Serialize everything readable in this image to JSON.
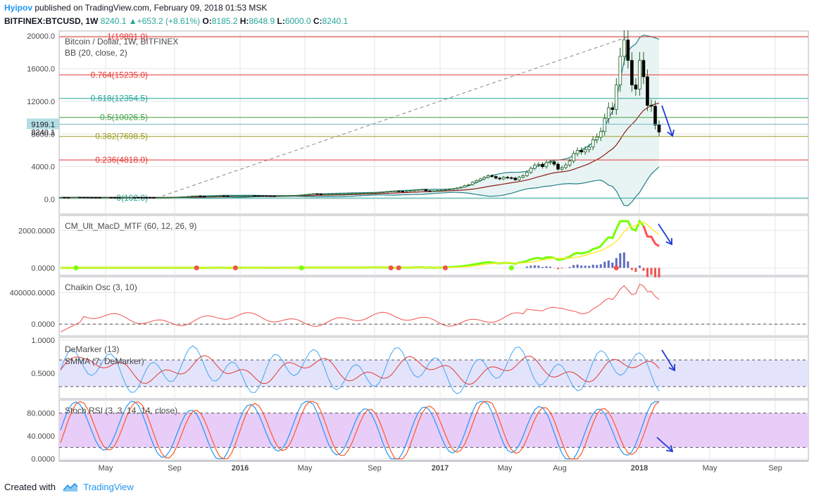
{
  "header": {
    "author": "Hyipov",
    "published": "published on TradingView.com, February 09, 2018 01:53 MSK",
    "symbol": "BITFINEX:BTCUSD, 1W",
    "last": "8240.1",
    "arrow": "▲",
    "change": "+653.2 (+8.61%)",
    "o_label": "O:",
    "o_val": "8185.2",
    "h_label": "H:",
    "h_val": "8648.9",
    "l_label": "L:",
    "l_val": "6000.0",
    "c_label": "C:",
    "c_val": "8240.1"
  },
  "footer": {
    "created_with": "Created with",
    "brand": "TradingView"
  },
  "colors": {
    "up": "#ffffff",
    "down": "#000000",
    "candle_border": "#1b5e20",
    "bb_band": "#26808a",
    "bb_basis": "#8b1a1a",
    "bb_fill": "#e8f4f3",
    "fib_red": "#e53935",
    "fib_teal": "#26a69a",
    "fib_green": "#43a047",
    "fib_olive": "#9e9d24",
    "macd_line": "#76ff03",
    "macd_signal": "#ffeb3b",
    "macd_line_down": "#ff5252",
    "chaikin": "#ef5350",
    "demarker": "#42a5f5",
    "smma": "#e53935",
    "demarker_band": "#e3e4fb",
    "stoch_k": "#2196f3",
    "stoch_d": "#ff5722",
    "stoch_band": "#e9cdf9",
    "forecast_arrow": "#1e3ad6",
    "grid": "#e6e6e6",
    "axis_text": "#4a4a4a"
  },
  "chart_data": [
    {
      "type": "candlestick",
      "title": "Bitcoin / Dollar, 1W, BITFINEX",
      "overlay": "BB (20, close, 2)",
      "yticks": [
        0,
        4000,
        8000,
        12000,
        16000,
        20000
      ],
      "ytick_labels": [
        "0.0",
        "4000.0",
        "8000.0",
        "12000.0",
        "16000.0",
        "20000.0"
      ],
      "ylim": [
        -1800,
        20600
      ],
      "price_labels": [
        {
          "value": 9199.1,
          "text": "9199.1"
        },
        {
          "value": 8240.1,
          "text": "8240.1"
        }
      ],
      "fib_levels": [
        {
          "ratio": "1",
          "value": 19891.0,
          "text": "1(19891.0)",
          "color": "fib_red"
        },
        {
          "ratio": "0.764",
          "value": 15235.0,
          "text": "0.764(15235.0)",
          "color": "fib_red"
        },
        {
          "ratio": "0.618",
          "value": 12354.5,
          "text": "0.618(12354.5)",
          "color": "fib_teal"
        },
        {
          "ratio": "0.5",
          "value": 10026.5,
          "text": "0.5(10026.5)",
          "color": "fib_green"
        },
        {
          "ratio": "0.382",
          "value": 7698.5,
          "text": "0.382(7698.5)",
          "color": "fib_olive"
        },
        {
          "ratio": "0.236",
          "value": 4818.0,
          "text": "0.236(4818.0)",
          "color": "fib_red"
        },
        {
          "ratio": "0",
          "value": 162.0,
          "text": "0(162.0)",
          "color": "fib_teal"
        }
      ],
      "closes_weekly": [
        240,
        235,
        230,
        240,
        255,
        250,
        245,
        240,
        235,
        230,
        225,
        230,
        235,
        232,
        228,
        225,
        230,
        240,
        245,
        240,
        235,
        232,
        230,
        228,
        225,
        230,
        235,
        240,
        245,
        260,
        280,
        300,
        330,
        370,
        420,
        430,
        390,
        360,
        380,
        410,
        430,
        440,
        420,
        400,
        410,
        420,
        430,
        440,
        450,
        460,
        450,
        440,
        430,
        420,
        415,
        410,
        420,
        430,
        440,
        455,
        470,
        500,
        550,
        600,
        640,
        700,
        680,
        580,
        620,
        640,
        650,
        660,
        670,
        680,
        700,
        720,
        740,
        760,
        780,
        800,
        820,
        840,
        880,
        920,
        960,
        1000,
        1020,
        1000,
        980,
        1040,
        1080,
        1120,
        1180,
        1210,
        1050,
        1000,
        1040,
        1080,
        1120,
        1200,
        1250,
        1300,
        1400,
        1500,
        1700,
        1800,
        2100,
        2300,
        2500,
        2700,
        2900,
        2800,
        2600,
        2500,
        2700,
        2650,
        2600,
        2400,
        2700,
        2900,
        3300,
        3800,
        4200,
        4300,
        4000,
        4500,
        4600,
        4300,
        3700,
        3900,
        4200,
        4700,
        5600,
        6000,
        5800,
        6100,
        6400,
        7300,
        7600,
        8300,
        9900,
        11200,
        11000,
        14000,
        17500,
        19500,
        17000,
        14000,
        13500,
        17000,
        15000,
        11500,
        11400,
        9100,
        8240
      ]
    },
    {
      "type": "line",
      "title": "CM_Ult_MacD_MTF (60, 12, 26, 9)",
      "yticks": [
        0,
        2000
      ],
      "ytick_labels": [
        "0.0000",
        "2000.0000"
      ],
      "ylim": [
        -400,
        2800
      ]
    },
    {
      "type": "line",
      "title": "Chaikin Osc (3, 10)",
      "yticks": [
        0,
        400000
      ],
      "ytick_labels": [
        "0.0000",
        "400000.0000"
      ],
      "ylim": [
        -150000,
        600000
      ]
    },
    {
      "type": "line",
      "title": "DeMarker (13)",
      "subtitle": "SMMA (7, DeMarker)",
      "yticks": [
        0.5,
        1.0
      ],
      "ytick_labels": [
        "0.5000",
        "1.0000"
      ],
      "band": [
        0.3,
        0.7
      ],
      "ylim": [
        0.12,
        1.04
      ]
    },
    {
      "type": "line",
      "title": "Stoch RSI (3, 3, 14, 14, close)",
      "yticks": [
        0,
        40,
        80
      ],
      "ytick_labels": [
        "0.0000",
        "40.0000",
        "80.0000"
      ],
      "band": [
        20,
        80
      ],
      "ylim": [
        -3,
        103
      ]
    }
  ],
  "time_axis": {
    "labels": [
      {
        "text": "May",
        "bold": false
      },
      {
        "text": "Sep",
        "bold": false
      },
      {
        "text": "2016",
        "bold": true
      },
      {
        "text": "May",
        "bold": false
      },
      {
        "text": "Sep",
        "bold": false
      },
      {
        "text": "2017",
        "bold": true
      },
      {
        "text": "May",
        "bold": false
      },
      {
        "text": "Aug",
        "bold": false
      },
      {
        "text": "2018",
        "bold": true
      },
      {
        "text": "May",
        "bold": false
      },
      {
        "text": "Sep",
        "bold": false
      }
    ]
  }
}
